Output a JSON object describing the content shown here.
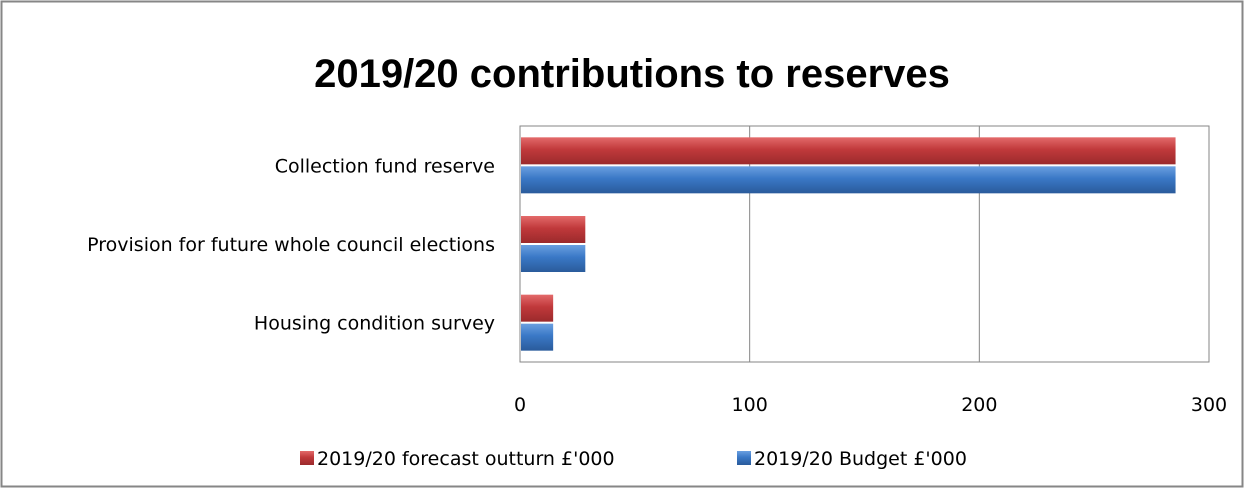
{
  "chart_data": {
    "type": "bar",
    "orientation": "horizontal",
    "title": "2019/20 contributions to reserves",
    "categories": [
      "Collection fund reserve",
      "Provision for future whole council elections",
      "Housing condition survey"
    ],
    "series": [
      {
        "name": "2019/20 forecast outturn £'000",
        "values": [
          285,
          28,
          14
        ],
        "color": "#c0393b"
      },
      {
        "name": "2019/20 Budget £'000",
        "values": [
          285,
          28,
          14
        ],
        "color": "#3a78c6"
      }
    ],
    "xlim": [
      0,
      300
    ],
    "xticks": [
      0,
      100,
      200,
      300
    ],
    "grid": true,
    "legend": "bottom"
  }
}
